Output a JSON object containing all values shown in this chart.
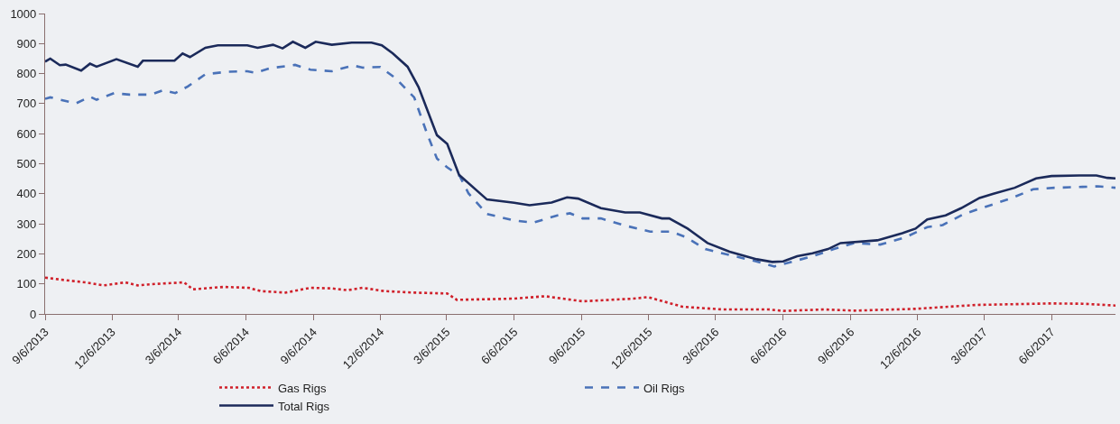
{
  "chart_data": {
    "type": "line",
    "legend": "bottom",
    "xlim": [
      "2013-09-06",
      "2017-09-01"
    ],
    "ylim": [
      0,
      1000
    ],
    "yticks": [
      0,
      100,
      200,
      300,
      400,
      500,
      600,
      700,
      800,
      900,
      1000
    ],
    "xticks": [
      {
        "value": "2013-09-06",
        "label": "9/6/2013"
      },
      {
        "value": "2013-12-06",
        "label": "12/6/2013"
      },
      {
        "value": "2014-03-06",
        "label": "3/6/2014"
      },
      {
        "value": "2014-06-06",
        "label": "6/6/2014"
      },
      {
        "value": "2014-09-06",
        "label": "9/6/2014"
      },
      {
        "value": "2014-12-06",
        "label": "12/6/2014"
      },
      {
        "value": "2015-03-06",
        "label": "3/6/2015"
      },
      {
        "value": "2015-06-06",
        "label": "6/6/2015"
      },
      {
        "value": "2015-09-06",
        "label": "9/6/2015"
      },
      {
        "value": "2015-12-06",
        "label": "12/6/2015"
      },
      {
        "value": "2016-03-06",
        "label": "3/6/2016"
      },
      {
        "value": "2016-06-06",
        "label": "6/6/2016"
      },
      {
        "value": "2016-09-06",
        "label": "9/6/2016"
      },
      {
        "value": "2016-12-06",
        "label": "12/6/2016"
      },
      {
        "value": "2017-03-06",
        "label": "3/6/2017"
      },
      {
        "value": "2017-06-06",
        "label": "6/6/2017"
      }
    ],
    "series": [
      {
        "name": "Gas Rigs",
        "color": "#d0202a",
        "line_style": "dotted",
        "x": [
          "2013-09-06",
          "2013-09-28",
          "2013-10-31",
          "2013-11-25",
          "2013-12-24",
          "2014-01-10",
          "2014-02-04",
          "2014-03-14",
          "2014-03-26",
          "2014-05-07",
          "2014-06-10",
          "2014-06-26",
          "2014-07-30",
          "2014-09-02",
          "2014-10-01",
          "2014-10-22",
          "2014-11-12",
          "2014-12-11",
          "2015-01-21",
          "2015-03-07",
          "2015-03-20",
          "2015-06-06",
          "2015-07-18",
          "2015-09-07",
          "2015-11-15",
          "2015-12-05",
          "2016-01-21",
          "2016-03-15",
          "2016-05-17",
          "2016-06-06",
          "2016-08-01",
          "2016-09-11",
          "2016-12-03",
          "2017-02-24",
          "2017-06-06",
          "2017-07-18",
          "2017-09-01"
        ],
        "values": [
          121,
          114,
          105,
          95,
          105,
          95,
          100,
          105,
          82,
          90,
          87,
          76,
          71,
          87,
          85,
          79,
          87,
          76,
          71,
          68,
          47,
          51,
          59,
          42,
          51,
          56,
          24,
          15,
          15,
          10,
          15,
          11,
          17,
          30,
          35,
          34,
          28
        ]
      },
      {
        "name": "Oil Rigs",
        "color": "#4a72b8",
        "line_style": "dashed",
        "x": [
          "2013-09-06",
          "2013-09-13",
          "2013-10-18",
          "2013-11-06",
          "2013-11-15",
          "2013-12-09",
          "2013-12-30",
          "2014-01-28",
          "2014-02-14",
          "2014-03-02",
          "2014-03-19",
          "2014-04-12",
          "2014-05-12",
          "2014-06-08",
          "2014-06-19",
          "2014-07-09",
          "2014-08-12",
          "2014-09-02",
          "2014-10-01",
          "2014-10-30",
          "2014-11-12",
          "2014-12-06",
          "2014-12-27",
          "2015-01-21",
          "2015-02-07",
          "2015-02-21",
          "2015-03-07",
          "2015-03-24",
          "2015-04-05",
          "2015-04-30",
          "2015-06-06",
          "2015-07-02",
          "2015-08-04",
          "2015-08-21",
          "2015-09-07",
          "2015-10-02",
          "2015-11-04",
          "2015-12-08",
          "2016-01-06",
          "2016-01-26",
          "2016-02-21",
          "2016-03-15",
          "2016-04-27",
          "2016-05-25",
          "2016-06-06",
          "2016-07-16",
          "2016-08-14",
          "2016-09-11",
          "2016-10-16",
          "2016-11-19",
          "2016-12-19",
          "2017-01-09",
          "2017-02-07",
          "2017-03-15",
          "2017-04-13",
          "2017-05-12",
          "2017-06-10",
          "2017-07-18",
          "2017-08-08",
          "2017-09-01"
        ],
        "values": [
          716,
          721,
          701,
          723,
          713,
          735,
          730,
          730,
          745,
          735,
          757,
          798,
          806,
          808,
          803,
          818,
          829,
          813,
          808,
          827,
          820,
          822,
          784,
          721,
          604,
          517,
          488,
          459,
          401,
          333,
          311,
          304,
          328,
          335,
          318,
          318,
          294,
          274,
          274,
          255,
          216,
          202,
          177,
          158,
          166,
          192,
          216,
          236,
          231,
          255,
          289,
          296,
          333,
          362,
          386,
          415,
          420,
          423,
          425,
          420
        ]
      },
      {
        "name": "Total Rigs",
        "color": "#1b2a5a",
        "line_style": "solid",
        "x": [
          "2013-09-06",
          "2013-09-13",
          "2013-09-26",
          "2013-10-04",
          "2013-10-25",
          "2013-11-06",
          "2013-11-15",
          "2013-12-12",
          "2014-01-10",
          "2014-01-17",
          "2014-03-01",
          "2014-03-12",
          "2014-03-22",
          "2014-04-12",
          "2014-04-29",
          "2014-06-08",
          "2014-06-22",
          "2014-07-13",
          "2014-07-26",
          "2014-08-09",
          "2014-08-26",
          "2014-09-09",
          "2014-10-01",
          "2014-10-28",
          "2014-11-24",
          "2014-12-08",
          "2014-12-23",
          "2015-01-12",
          "2015-01-27",
          "2015-02-21",
          "2015-03-07",
          "2015-03-23",
          "2015-04-30",
          "2015-06-06",
          "2015-06-27",
          "2015-07-27",
          "2015-08-17",
          "2015-09-01",
          "2015-10-02",
          "2015-11-04",
          "2015-11-24",
          "2015-12-24",
          "2016-01-03",
          "2016-01-28",
          "2016-02-24",
          "2016-03-25",
          "2016-05-01",
          "2016-05-22",
          "2016-06-06",
          "2016-06-25",
          "2016-07-16",
          "2016-08-06",
          "2016-08-23",
          "2016-10-12",
          "2016-11-15",
          "2016-12-03",
          "2016-12-19",
          "2017-01-13",
          "2017-02-03",
          "2017-02-28",
          "2017-03-19",
          "2017-04-17",
          "2017-05-16",
          "2017-06-06",
          "2017-07-14",
          "2017-08-06",
          "2017-08-21",
          "2017-09-01"
        ],
        "values": [
          840,
          850,
          828,
          830,
          810,
          833,
          823,
          848,
          823,
          843,
          843,
          867,
          855,
          886,
          894,
          894,
          886,
          896,
          884,
          906,
          886,
          906,
          896,
          903,
          903,
          894,
          867,
          823,
          755,
          595,
          566,
          463,
          381,
          370,
          362,
          371,
          388,
          384,
          352,
          338,
          338,
          318,
          318,
          284,
          236,
          207,
          182,
          173,
          175,
          192,
          202,
          216,
          236,
          245,
          269,
          284,
          315,
          328,
          352,
          386,
          400,
          420,
          451,
          459,
          461,
          461,
          453,
          451
        ]
      }
    ]
  }
}
